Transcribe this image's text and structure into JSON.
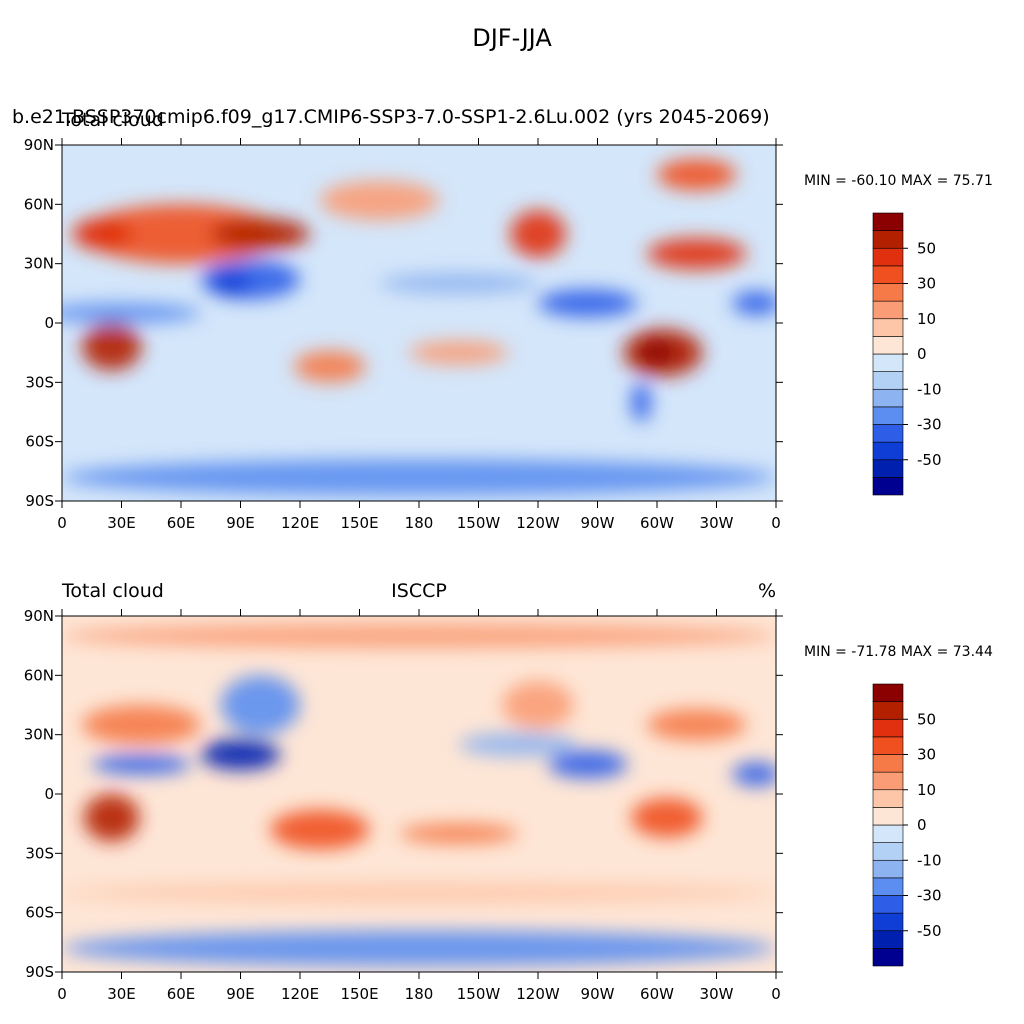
{
  "title": "DJF-JJA",
  "panels": [
    {
      "case_title": "b.e21.BSSP370cmip6.f09_g17.CMIP6-SSP3-7.0-SSP1-2.6Lu.002 (yrs 2045-2069)",
      "left_title": "Total cloud",
      "stats": "MIN = -60.10 MAX =  75.71"
    },
    {
      "left_title": "Total cloud",
      "center_title": "ISCCP",
      "right_title": "%",
      "stats": "MIN = -71.78 MAX =  73.44"
    }
  ],
  "map": {
    "xlim": [
      0,
      360
    ],
    "ylim": [
      -90,
      90
    ],
    "xticks": [
      0,
      {
        "value": 30,
        "label": "30E"
      },
      {
        "value": 60,
        "label": "60E"
      },
      {
        "value": 90,
        "label": "90E"
      },
      {
        "value": 120,
        "label": "120E"
      },
      {
        "value": 150,
        "label": "150E"
      },
      180,
      {
        "value": 210,
        "label": "150W"
      },
      {
        "value": 240,
        "label": "120W"
      },
      {
        "value": 270,
        "label": "90W"
      },
      {
        "value": 300,
        "label": "60W"
      },
      {
        "value": 330,
        "label": "30W"
      },
      {
        "value": 360,
        "label": "0"
      }
    ],
    "yticks": [
      {
        "value": 90,
        "label": "90N"
      },
      {
        "value": 60,
        "label": "60N"
      },
      {
        "value": 30,
        "label": "30N"
      },
      0,
      {
        "value": -30,
        "label": "30S"
      },
      {
        "value": -60,
        "label": "60S"
      },
      {
        "value": -90,
        "label": "90S"
      }
    ]
  },
  "colorbar": {
    "levels": [
      -60,
      -50,
      -40,
      -30,
      -20,
      -10,
      -5,
      0,
      5,
      10,
      20,
      30,
      40,
      50,
      60
    ],
    "ticks": [
      50,
      30,
      10,
      0,
      -10,
      -30,
      -50
    ],
    "colors": [
      "#000090",
      "#0020b0",
      "#0f3ed6",
      "#2e5ee8",
      "#5b8ef0",
      "#8db3f0",
      "#b3d0f5",
      "#d4e6fa",
      "#fee6d6",
      "#fdc6a8",
      "#fa9c75",
      "#f57a48",
      "#f05020",
      "#e03010",
      "#b22000",
      "#8b0000"
    ]
  }
}
